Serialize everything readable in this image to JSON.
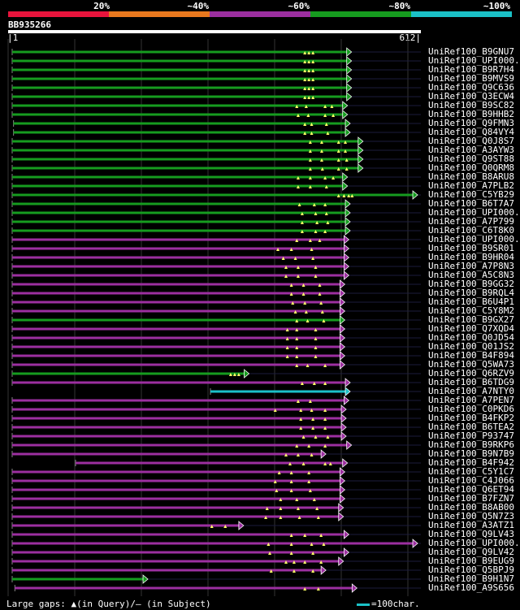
{
  "legend": {
    "labels": [
      "20%",
      "~40%",
      "~60%",
      "~80%",
      "~100%"
    ],
    "colors": [
      "#e8143c",
      "#e8781e",
      "#9c2fa0",
      "#169c1f",
      "#1bc1c7"
    ]
  },
  "query": {
    "id": "BB935266",
    "start": "1",
    "end": "612",
    "length": 612
  },
  "footer": {
    "text": "Large gaps: ▲(in Query)/– (in Subject)",
    "scale_text": "=100char."
  },
  "hits": [
    {
      "label": "UniRef100_B9GNU7",
      "color": "green",
      "start": 6,
      "end": 502,
      "gaps": [
        440,
        446,
        452
      ]
    },
    {
      "label": "UniRef100_UPI000..",
      "color": "green",
      "start": 6,
      "end": 502,
      "gaps": [
        440,
        446,
        452
      ]
    },
    {
      "label": "UniRef100_B9R7H4",
      "color": "green",
      "start": 6,
      "end": 502,
      "gaps": [
        440,
        446,
        452
      ]
    },
    {
      "label": "UniRef100_B9MVS9",
      "color": "green",
      "start": 6,
      "end": 502,
      "gaps": [
        440,
        446,
        452
      ]
    },
    {
      "label": "UniRef100_Q9C636",
      "color": "green",
      "start": 6,
      "end": 502,
      "gaps": [
        440,
        446,
        452
      ]
    },
    {
      "label": "UniRef100_Q3ECW4",
      "color": "green",
      "start": 6,
      "end": 502,
      "gaps": [
        440,
        446,
        452
      ]
    },
    {
      "label": "UniRef100_B9SC82",
      "color": "green",
      "start": 6,
      "end": 496,
      "gaps": [
        428,
        442,
        470,
        480
      ]
    },
    {
      "label": "UniRef100_B9HHB2",
      "color": "green",
      "start": 6,
      "end": 496,
      "gaps": [
        430,
        445,
        470,
        482
      ]
    },
    {
      "label": "UniRef100_Q9FMN3",
      "color": "green",
      "start": 8,
      "end": 500,
      "gaps": [
        440,
        450,
        472
      ]
    },
    {
      "label": "UniRef100_Q84VY4",
      "color": "green",
      "start": 8,
      "end": 500,
      "gaps": [
        440,
        450,
        474
      ]
    },
    {
      "label": "UniRef100_Q0J8S7",
      "color": "green",
      "start": 6,
      "end": 519,
      "gaps": [
        448,
        465,
        490,
        500
      ]
    },
    {
      "label": "UniRef100_A3AYW3",
      "color": "green",
      "start": 6,
      "end": 519,
      "gaps": [
        448,
        465,
        490,
        500
      ]
    },
    {
      "label": "UniRef100_Q9ST88",
      "color": "green",
      "start": 6,
      "end": 519,
      "gaps": [
        448,
        465,
        490,
        502
      ]
    },
    {
      "label": "UniRef100_Q0QRM8",
      "color": "green",
      "start": 6,
      "end": 519,
      "gaps": [
        448,
        466,
        490,
        502
      ]
    },
    {
      "label": "UniRef100_B8ARU8",
      "color": "green",
      "start": 6,
      "end": 496,
      "gaps": [
        430,
        448,
        470,
        482
      ]
    },
    {
      "label": "UniRef100_A7PLB2",
      "color": "green",
      "start": 6,
      "end": 496,
      "gaps": [
        430,
        448,
        472
      ]
    },
    {
      "label": "UniRef100_C5YB29",
      "color": "green",
      "start": 6,
      "end": 600,
      "gaps": [
        490,
        498,
        505,
        510
      ]
    },
    {
      "label": "UniRef100_B6T7A7",
      "color": "green",
      "start": 6,
      "end": 500,
      "gaps": [
        432,
        454,
        470
      ]
    },
    {
      "label": "UniRef100_UPI000..",
      "color": "green",
      "start": 6,
      "end": 500,
      "gaps": [
        436,
        456,
        472
      ]
    },
    {
      "label": "UniRef100_A7P799",
      "color": "green",
      "start": 6,
      "end": 500,
      "gaps": [
        436,
        458,
        474
      ]
    },
    {
      "label": "UniRef100_C6T8K0",
      "color": "green",
      "start": 6,
      "end": 500,
      "gaps": [
        436,
        456,
        470
      ]
    },
    {
      "label": "UniRef100_UPI000..",
      "color": "purple",
      "start": 6,
      "end": 498,
      "gaps": [
        428,
        448,
        462
      ]
    },
    {
      "label": "UniRef100_B9SR01",
      "color": "purple",
      "start": 6,
      "end": 498,
      "gaps": [
        400,
        420,
        450
      ]
    },
    {
      "label": "UniRef100_B9HR04",
      "color": "purple",
      "start": 6,
      "end": 498,
      "gaps": [
        408,
        426,
        452
      ]
    },
    {
      "label": "UniRef100_A7P8N3",
      "color": "purple",
      "start": 6,
      "end": 498,
      "gaps": [
        412,
        430,
        456
      ]
    },
    {
      "label": "UniRef100_A5C8N3",
      "color": "purple",
      "start": 6,
      "end": 498,
      "gaps": [
        412,
        430,
        456
      ]
    },
    {
      "label": "UniRef100_B9GG32",
      "color": "purple",
      "start": 6,
      "end": 492,
      "gaps": [
        420,
        438,
        462
      ]
    },
    {
      "label": "UniRef100_B9RQL4",
      "color": "purple",
      "start": 6,
      "end": 492,
      "gaps": [
        420,
        438,
        462
      ]
    },
    {
      "label": "UniRef100_B6U4P1",
      "color": "purple",
      "start": 6,
      "end": 492,
      "gaps": [
        422,
        440,
        464
      ]
    },
    {
      "label": "UniRef100_C5Y8M2",
      "color": "purple",
      "start": 6,
      "end": 492,
      "gaps": [
        426,
        442,
        466
      ]
    },
    {
      "label": "UniRef100_B9GX27",
      "color": "green",
      "start": 6,
      "end": 492,
      "gaps": [
        428,
        444,
        468
      ]
    },
    {
      "label": "UniRef100_Q7XQD4",
      "color": "purple",
      "start": 6,
      "end": 492,
      "gaps": [
        414,
        428,
        456
      ]
    },
    {
      "label": "UniRef100_Q0JD54",
      "color": "purple",
      "start": 6,
      "end": 492,
      "gaps": [
        414,
        428,
        456
      ]
    },
    {
      "label": "UniRef100_Q01JS2",
      "color": "purple",
      "start": 6,
      "end": 492,
      "gaps": [
        414,
        428,
        456
      ]
    },
    {
      "label": "UniRef100_B4F894",
      "color": "purple",
      "start": 6,
      "end": 492,
      "gaps": [
        414,
        428,
        456
      ]
    },
    {
      "label": "UniRef100_Q5WA73",
      "color": "purple",
      "start": 6,
      "end": 492,
      "gaps": [
        428,
        444,
        470
      ]
    },
    {
      "label": "UniRef100_Q6RZV9",
      "color": "green",
      "start": 6,
      "end": 350,
      "gaps": [
        330,
        336,
        342
      ]
    },
    {
      "label": "UniRef100_B6TDG9",
      "color": "purple",
      "start": 6,
      "end": 500,
      "gaps": [
        436,
        454,
        470
      ]
    },
    {
      "label": "UniRef100_A7NTY0",
      "color": "cyan",
      "start": 300,
      "end": 500,
      "gaps": []
    },
    {
      "label": "UniRef100_A7PEN7",
      "color": "purple",
      "start": 6,
      "end": 498,
      "gaps": [
        430,
        448
      ]
    },
    {
      "label": "UniRef100_C0PKD6",
      "color": "purple",
      "start": 6,
      "end": 494,
      "gaps": [
        396,
        434,
        450,
        470
      ]
    },
    {
      "label": "UniRef100_B4FKP2",
      "color": "purple",
      "start": 6,
      "end": 494,
      "gaps": [
        434,
        452,
        470
      ]
    },
    {
      "label": "UniRef100_B6TEA2",
      "color": "purple",
      "start": 6,
      "end": 494,
      "gaps": [
        434,
        452,
        470
      ]
    },
    {
      "label": "UniRef100_P93747",
      "color": "purple",
      "start": 6,
      "end": 494,
      "gaps": [
        438,
        456,
        474
      ]
    },
    {
      "label": "UniRef100_B9RKP6",
      "color": "purple",
      "start": 6,
      "end": 502,
      "gaps": [
        428,
        446,
        470
      ]
    },
    {
      "label": "UniRef100_B9N7B9",
      "color": "purple",
      "start": 6,
      "end": 464,
      "gaps": [
        412,
        430,
        450
      ]
    },
    {
      "label": "UniRef100_B4F942",
      "color": "purple",
      "start": 100,
      "end": 496,
      "gaps": [
        418,
        438,
        470,
        478
      ]
    },
    {
      "label": "UniRef100_C5Y1C7",
      "color": "purple",
      "start": 6,
      "end": 492,
      "gaps": [
        402,
        420,
        446
      ]
    },
    {
      "label": "UniRef100_C4J066",
      "color": "purple",
      "start": 6,
      "end": 492,
      "gaps": [
        396,
        420,
        446
      ]
    },
    {
      "label": "UniRef100_Q6ET94",
      "color": "purple",
      "start": 6,
      "end": 492,
      "gaps": [
        398,
        420,
        448
      ]
    },
    {
      "label": "UniRef100_B7FZN7",
      "color": "purple",
      "start": 6,
      "end": 492,
      "gaps": [
        404,
        428,
        454
      ]
    },
    {
      "label": "UniRef100_B8AB00",
      "color": "purple",
      "start": 6,
      "end": 490,
      "gaps": [
        384,
        404,
        430,
        458
      ]
    },
    {
      "label": "UniRef100_Q5N7Z3",
      "color": "purple",
      "start": 6,
      "end": 490,
      "gaps": [
        382,
        404,
        432,
        460
      ]
    },
    {
      "label": "UniRef100_A3ATZ1",
      "color": "purple",
      "start": 6,
      "end": 342,
      "gaps": [
        302,
        322
      ]
    },
    {
      "label": "UniRef100_Q9LV43",
      "color": "purple",
      "start": 6,
      "end": 498,
      "gaps": [
        420,
        440,
        464
      ]
    },
    {
      "label": "UniRef100_UPI000..",
      "color": "purple",
      "start": 6,
      "end": 600,
      "gaps": [
        386,
        420,
        450,
        468
      ]
    },
    {
      "label": "UniRef100_Q9LV42",
      "color": "purple",
      "start": 6,
      "end": 498,
      "gaps": [
        388,
        420,
        452
      ]
    },
    {
      "label": "UniRef100_B9EUG9",
      "color": "purple",
      "start": 6,
      "end": 490,
      "gaps": [
        412,
        424,
        440,
        464
      ]
    },
    {
      "label": "UniRef100_Q5BPJ9",
      "color": "purple",
      "start": 6,
      "end": 464,
      "gaps": [
        390,
        424,
        452
      ]
    },
    {
      "label": "UniRef100_B9H1N7",
      "color": "green",
      "start": 6,
      "end": 200,
      "gaps": []
    },
    {
      "label": "UniRef100_A9S656",
      "color": "purple",
      "start": 10,
      "end": 510,
      "gaps": [
        440,
        460
      ]
    }
  ]
}
